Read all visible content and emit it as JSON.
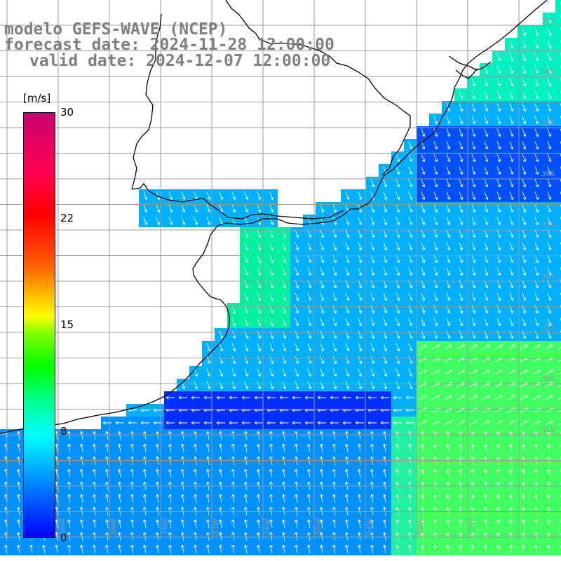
{
  "header": {
    "line1": "modelo GEFS-WAVE (NCEP)",
    "line2": "forecast date: 2024-11-28 12:00:00",
    "line3": "valid date: 2024-12-07 12:00:00"
  },
  "colorbar": {
    "unit": "[m/s]",
    "ticks": [
      "30",
      "22",
      "15",
      "8",
      "0"
    ],
    "range": [
      0,
      30
    ]
  },
  "map": {
    "variable": "wind speed and direction",
    "land_color": "#ffffff",
    "coastline_color": "#000000",
    "grid_color": "#9a9a9a",
    "lat_labels": [
      "33S",
      "34S",
      "35S",
      "36S",
      "37S",
      "38S",
      "39S",
      "40S",
      "41S"
    ],
    "lon_labels": [
      "60W",
      "59W",
      "58W",
      "57W",
      "56W",
      "55W",
      "54W",
      "53W",
      "52W"
    ]
  }
}
